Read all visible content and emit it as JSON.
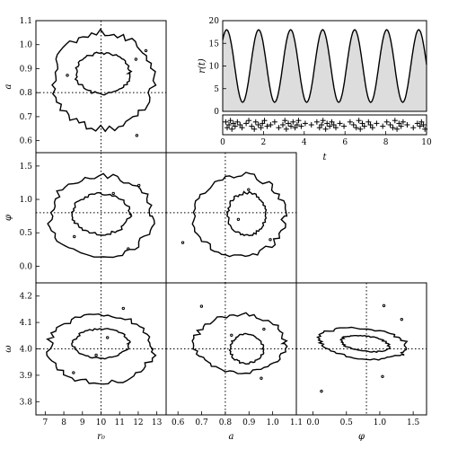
{
  "chart_data": [
    {
      "type": "line",
      "panel": "r_of_t",
      "title": "",
      "xlabel": "t",
      "ylabel": "r(t)",
      "xlim": [
        0,
        10
      ],
      "ylim": [
        0,
        20
      ],
      "xticks": [
        "0",
        "2",
        "4",
        "6",
        "8",
        "10"
      ],
      "yticks": [
        "0",
        "5",
        "10",
        "15",
        "20"
      ],
      "fill": "#dddddd",
      "model": {
        "r0": 10,
        "a": 0.8,
        "phi": 0.8,
        "omega": 4.0
      },
      "series": [
        {
          "values": []
        }
      ]
    },
    {
      "type": "scatter",
      "panel": "event_times",
      "title": "",
      "xlim": [
        0,
        10
      ],
      "marker": "+",
      "x": [
        0.15,
        0.22,
        0.31,
        0.38,
        0.45,
        0.52,
        0.61,
        0.72,
        0.85,
        0.95,
        1.15,
        1.28,
        1.42,
        1.55,
        1.62,
        1.75,
        1.88,
        1.95,
        2.05,
        2.18,
        2.35,
        2.55,
        2.75,
        2.95,
        3.05,
        3.12,
        3.22,
        3.35,
        3.45,
        3.55,
        3.65,
        3.72,
        3.85,
        4.05,
        4.35,
        4.62,
        4.75,
        4.85,
        4.92,
        5.05,
        5.12,
        5.25,
        5.35,
        5.45,
        5.55,
        5.75,
        5.95,
        6.25,
        6.42,
        6.55,
        6.68,
        6.75,
        6.85,
        6.95,
        7.15,
        7.25,
        7.35,
        7.55,
        7.85,
        8.05,
        8.22,
        8.35,
        8.45,
        8.55,
        8.65,
        8.75,
        8.85,
        9.05,
        9.35,
        9.55,
        9.68,
        9.75,
        9.85,
        9.92
      ],
      "y_jitter": [
        0.3,
        0.7,
        0.5,
        0.2,
        0.8,
        0.4,
        0.6,
        0.3,
        0.5,
        0.7,
        0.4,
        0.2,
        0.6,
        0.8,
        0.3,
        0.5,
        0.7,
        0.4,
        0.2,
        0.6,
        0.5,
        0.3,
        0.7,
        0.5,
        0.2,
        0.8,
        0.4,
        0.6,
        0.3,
        0.7,
        0.5,
        0.2,
        0.6,
        0.4,
        0.5,
        0.3,
        0.7,
        0.5,
        0.2,
        0.8,
        0.4,
        0.6,
        0.3,
        0.5,
        0.7,
        0.4,
        0.6,
        0.3,
        0.5,
        0.7,
        0.2,
        0.8,
        0.4,
        0.6,
        0.3,
        0.5,
        0.7,
        0.4,
        0.6,
        0.3,
        0.5,
        0.7,
        0.2,
        0.8,
        0.4,
        0.6,
        0.3,
        0.5,
        0.7,
        0.4,
        0.6,
        0.3,
        0.5,
        0.8
      ]
    },
    {
      "type": "contour",
      "panel": "a_vs_r0",
      "xlim": [
        6.5,
        13.5
      ],
      "ylim": [
        0.55,
        1.1
      ],
      "ylabel": "a",
      "yticks": [
        "0.6",
        "0.7",
        "0.8",
        "0.9",
        "1.0",
        "1.1"
      ],
      "truth": {
        "x": 10,
        "y": 0.8
      },
      "contours": [
        {
          "level": "inner",
          "center": [
            10.1,
            0.88
          ],
          "radii": [
            1.45,
            0.085
          ],
          "rotate": 0
        },
        {
          "level": "outer",
          "center": [
            10.1,
            0.85
          ],
          "radii": [
            2.7,
            0.2
          ],
          "rotate": 0
        }
      ]
    },
    {
      "type": "contour",
      "panel": "phi_vs_r0",
      "xlim": [
        6.5,
        13.5
      ],
      "ylim": [
        -0.25,
        1.7
      ],
      "ylabel": "φ",
      "yticks": [
        "0.0",
        "0.5",
        "1.0",
        "1.5"
      ],
      "truth": {
        "x": 10,
        "y": 0.8
      },
      "contours": [
        {
          "level": "inner",
          "center": [
            10.0,
            0.78
          ],
          "radii": [
            1.55,
            0.3
          ],
          "rotate": 0
        },
        {
          "level": "outer",
          "center": [
            10.0,
            0.75
          ],
          "radii": [
            2.75,
            0.6
          ],
          "rotate": 0
        }
      ]
    },
    {
      "type": "contour",
      "panel": "phi_vs_a",
      "xlim": [
        0.55,
        1.1
      ],
      "ylim": [
        -0.25,
        1.7
      ],
      "truth": {
        "x": 0.8,
        "y": 0.8
      },
      "contours": [
        {
          "level": "inner",
          "center": [
            0.89,
            0.78
          ],
          "radii": [
            0.08,
            0.32
          ],
          "rotate": 0
        },
        {
          "level": "outer",
          "center": [
            0.86,
            0.75
          ],
          "radii": [
            0.19,
            0.62
          ],
          "rotate": 0
        }
      ]
    },
    {
      "type": "contour",
      "panel": "omega_vs_r0",
      "xlim": [
        6.5,
        13.5
      ],
      "ylim": [
        3.75,
        4.25
      ],
      "xlabel": "r₀",
      "ylabel": "ω",
      "xticks": [
        "7",
        "8",
        "9",
        "10",
        "11",
        "12",
        "13"
      ],
      "yticks": [
        "3.8",
        "3.9",
        "4.0",
        "4.1",
        "4.2"
      ],
      "truth": {
        "x": 10,
        "y": 4.0
      },
      "contours": [
        {
          "level": "inner",
          "center": [
            10.0,
            4.02
          ],
          "radii": [
            1.5,
            0.055
          ],
          "rotate": 0
        },
        {
          "level": "outer",
          "center": [
            10.0,
            4.0
          ],
          "radii": [
            2.8,
            0.13
          ],
          "rotate": 0
        }
      ]
    },
    {
      "type": "contour",
      "panel": "omega_vs_a",
      "xlim": [
        0.55,
        1.1
      ],
      "ylim": [
        3.75,
        4.25
      ],
      "xlabel": "a",
      "xticks": [
        "0.6",
        "0.7",
        "0.8",
        "0.9",
        "1.0",
        "1.1"
      ],
      "truth": {
        "x": 0.8,
        "y": 4.0
      },
      "contours": [
        {
          "level": "inner",
          "center": [
            0.89,
            4.0
          ],
          "radii": [
            0.07,
            0.055
          ],
          "rotate": 0
        },
        {
          "level": "outer",
          "center": [
            0.86,
            4.02
          ],
          "radii": [
            0.19,
            0.11
          ],
          "rotate": 0
        }
      ]
    },
    {
      "type": "contour",
      "panel": "omega_vs_phi",
      "xlim": [
        -0.25,
        1.7
      ],
      "ylim": [
        3.75,
        4.25
      ],
      "xlabel": "φ",
      "xticks": [
        "0.0",
        "0.5",
        "1.0",
        "1.5"
      ],
      "truth": {
        "x": 0.8,
        "y": 4.0
      },
      "contours": [
        {
          "level": "inner",
          "center": [
            0.78,
            4.02
          ],
          "radii": [
            0.38,
            0.025
          ],
          "rotate": 1
        },
        {
          "level": "outer",
          "center": [
            0.75,
            4.02
          ],
          "radii": [
            0.68,
            0.05
          ],
          "rotate": 1
        }
      ]
    }
  ]
}
